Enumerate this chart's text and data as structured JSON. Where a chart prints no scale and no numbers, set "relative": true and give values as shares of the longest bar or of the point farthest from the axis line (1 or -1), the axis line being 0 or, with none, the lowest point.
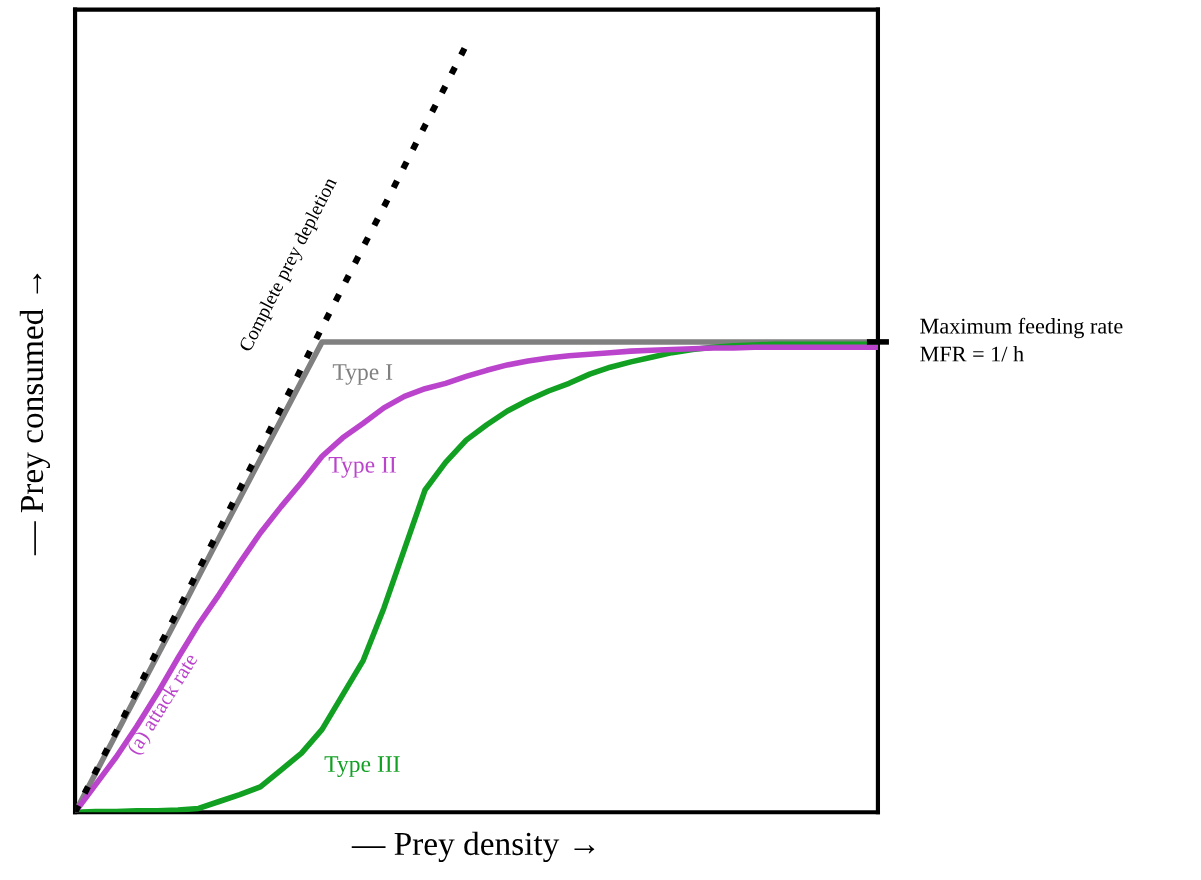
{
  "chart_data": {
    "type": "line",
    "relative": true,
    "tick_labels": false,
    "marker": "none",
    "xlabel": "— Prey density →",
    "ylabel": "— Prey consumed →",
    "categories": [
      null,
      null,
      null,
      null,
      null,
      null,
      null,
      null,
      null,
      null,
      null,
      null,
      null,
      null,
      null,
      null,
      null,
      null,
      null,
      null,
      null,
      null,
      null,
      null,
      null,
      null,
      null,
      null,
      null,
      null,
      null,
      null,
      null,
      null,
      null,
      null,
      null,
      null,
      null,
      null
    ],
    "series": [
      {
        "name": "Complete prey depletion",
        "color": "#000000",
        "line_style": "dashed",
        "values": [
          0,
          0.053,
          0.105,
          0.158,
          0.211,
          0.263,
          0.316,
          0.368,
          0.421,
          0.474,
          0.526,
          0.579,
          0.632,
          0.684,
          0.737,
          0.789,
          0.842,
          0.895,
          0.947,
          1.0,
          null,
          null,
          null,
          null,
          null,
          null,
          null,
          null,
          null,
          null,
          null,
          null,
          null,
          null,
          null,
          null,
          null,
          null,
          null,
          null
        ]
      },
      {
        "name": "Type I",
        "color": "#808080",
        "line_style": "solid",
        "values": [
          0,
          0.051,
          0.102,
          0.153,
          0.204,
          0.255,
          0.307,
          0.358,
          0.409,
          0.46,
          0.511,
          0.562,
          0.613,
          0.613,
          0.613,
          0.613,
          0.613,
          0.613,
          0.613,
          0.613,
          0.613,
          0.613,
          0.613,
          0.613,
          0.613,
          0.613,
          0.613,
          0.613,
          0.613,
          0.613,
          0.613,
          0.613,
          0.613,
          0.613,
          0.613,
          0.613,
          0.613,
          0.613,
          0.613,
          0.613
        ]
      },
      {
        "name": "Type II",
        "color": "#bb44cc",
        "line_style": "solid",
        "values": [
          0,
          0.036,
          0.072,
          0.112,
          0.155,
          0.201,
          0.245,
          0.284,
          0.325,
          0.364,
          0.398,
          0.43,
          0.464,
          0.488,
          0.507,
          0.527,
          0.542,
          0.552,
          0.559,
          0.568,
          0.576,
          0.583,
          0.588,
          0.592,
          0.595,
          0.597,
          0.599,
          0.601,
          0.602,
          0.603,
          0.604,
          0.605,
          0.605,
          0.606,
          0.606,
          0.606,
          0.606,
          0.606,
          0.606,
          0.606
        ]
      },
      {
        "name": "Type III",
        "color": "#11a022",
        "line_style": "solid",
        "values": [
          0,
          0.001,
          0.001,
          0.002,
          0.002,
          0.003,
          0.005,
          0.014,
          0.023,
          0.033,
          0.055,
          0.077,
          0.108,
          0.153,
          0.198,
          0.266,
          0.343,
          0.42,
          0.456,
          0.485,
          0.505,
          0.523,
          0.537,
          0.549,
          0.559,
          0.571,
          0.58,
          0.587,
          0.593,
          0.599,
          0.603,
          0.606,
          0.608,
          0.609,
          0.61,
          0.61,
          0.61,
          0.61,
          0.61,
          0.61
        ]
      }
    ],
    "annotations": [
      "(a) attack rate",
      "Maximum feeding rate\nMFR = 1/ h"
    ]
  }
}
